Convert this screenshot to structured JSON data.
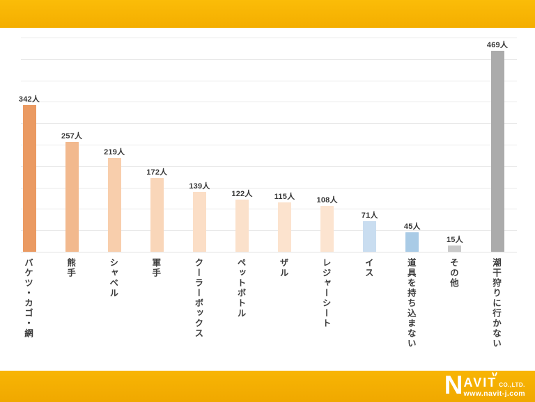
{
  "page": {
    "background_color": "#ffffff",
    "accent_band_color": "#F7B301"
  },
  "chart_data": {
    "type": "bar",
    "title": "",
    "xlabel": "",
    "ylabel": "",
    "unit": "人",
    "categories": [
      "バケツ・カゴ・網",
      "熊手",
      "シャベル",
      "軍手",
      "クーラーボックス",
      "ペットボトル",
      "ザル",
      "レジャーシート",
      "イス",
      "道具を持ち込まない",
      "その他",
      "潮干狩りに行かない"
    ],
    "values": [
      342,
      257,
      219,
      172,
      139,
      122,
      115,
      108,
      71,
      45,
      15,
      469
    ],
    "data_labels": [
      "342人",
      "257人",
      "219人",
      "172人",
      "139人",
      "122人",
      "115人",
      "108人",
      "71人",
      "45人",
      "15人",
      "469人"
    ],
    "bar_colors": [
      "#EA9A62",
      "#F2B98E",
      "#F8CEAC",
      "#F9D6B9",
      "#FBDEC6",
      "#FBE1CB",
      "#FCE3CE",
      "#FCE4D0",
      "#C9DDF0",
      "#A9CBE6",
      "#C9C9C9",
      "#ABABAB"
    ],
    "ylim": [
      0,
      500
    ],
    "gridline_step": 50,
    "grid": true,
    "legend": "none",
    "category_label_orientation": "vertical",
    "gridline_color": "#e9e9e9"
  },
  "footer": {
    "logo": {
      "initial": "N",
      "rest": "AVIT",
      "suffix": "CO.,LTD.",
      "url": "www.navit-j.com"
    }
  }
}
